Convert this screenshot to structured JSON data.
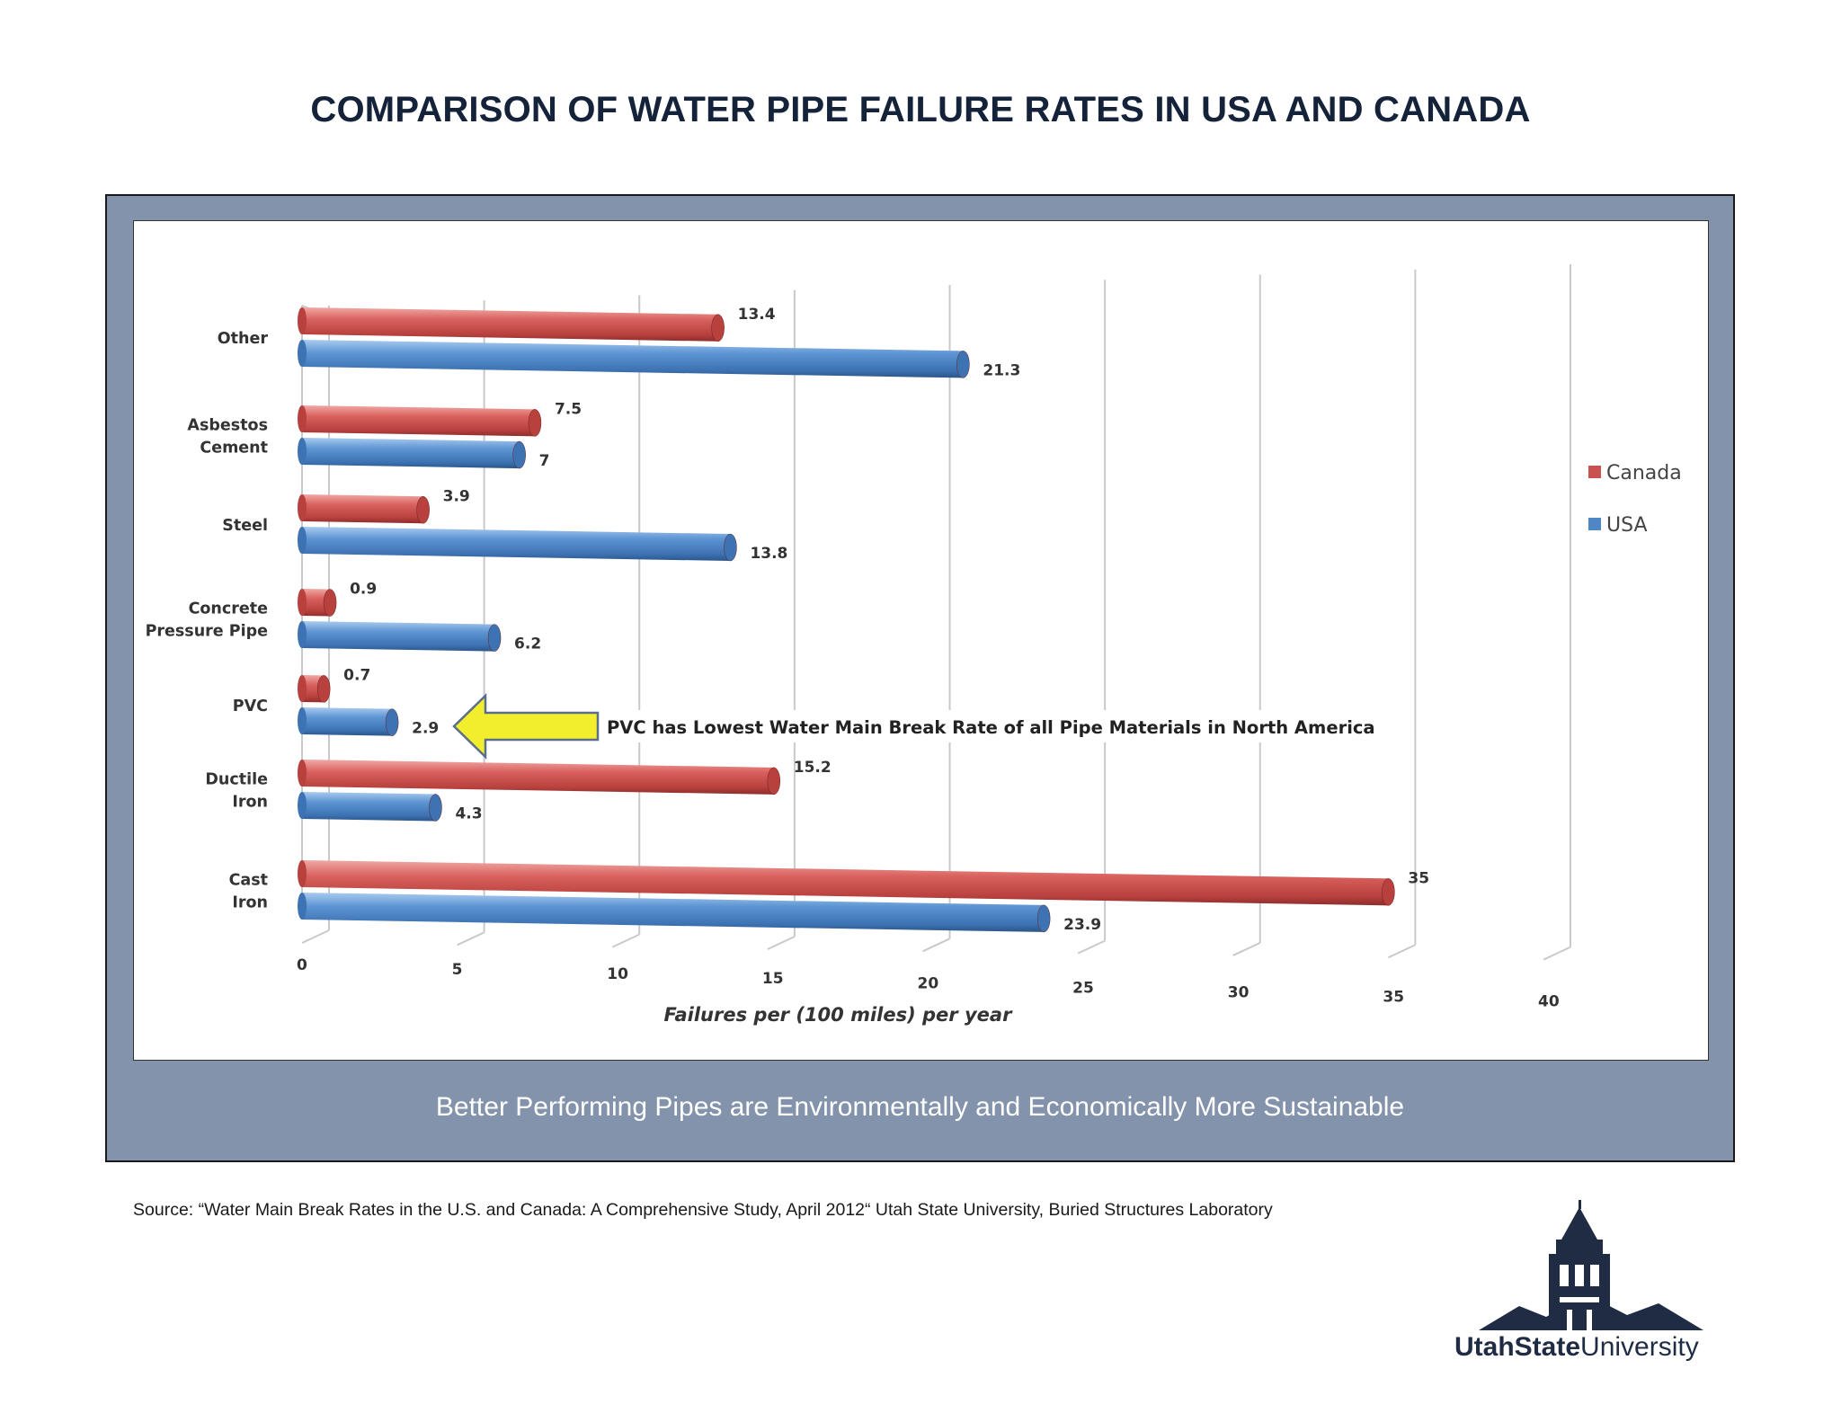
{
  "page_title": "COMPARISON OF WATER PIPE FAILURE RATES IN USA AND CANADA",
  "tagline": "Better Performing Pipes are Environmentally and Economically More Sustainable",
  "source": "Source: “Water Main Break Rates in the U.S. and Canada: A Comprehensive Study, April 2012“ Utah State University, Buried Structures Laboratory",
  "logo": {
    "bold": "UtahState",
    "regular": "University"
  },
  "colors": {
    "canada": "#c9514f",
    "usa": "#4f86c6",
    "frame": "#8393ac",
    "arrow": "#f2ee2e"
  },
  "chart_data": {
    "type": "bar",
    "orientation": "horizontal",
    "categories": [
      [
        "Other"
      ],
      [
        "Asbestos",
        "Cement"
      ],
      [
        "Steel"
      ],
      [
        "Concrete",
        "Pressure Pipe"
      ],
      [
        "PVC"
      ],
      [
        "Ductile",
        "Iron"
      ],
      [
        "Cast",
        "Iron"
      ]
    ],
    "series": [
      {
        "name": "Canada",
        "color": "#c9514f",
        "values": [
          13.4,
          7.5,
          3.9,
          0.9,
          0.7,
          15.2,
          35
        ]
      },
      {
        "name": "USA",
        "color": "#4f86c6",
        "values": [
          21.3,
          7,
          13.8,
          6.2,
          2.9,
          4.3,
          23.9
        ]
      }
    ],
    "value_labels": {
      "Canada": [
        "13.4",
        "7.5",
        "3.9",
        "0.9",
        "0.7",
        "15.2",
        "35"
      ],
      "USA": [
        "21.3",
        "7",
        "13.8",
        "6.2",
        "2.9",
        "4.3",
        "23.9"
      ]
    },
    "xlabel": "Failures per (100 miles) per year",
    "xlim": [
      0,
      40
    ],
    "xticks": [
      0,
      5,
      10,
      15,
      20,
      25,
      30,
      35,
      40
    ],
    "legend_position": "right",
    "annotation": "PVC has Lowest Water Main Break Rate of all Pipe Materials in North America",
    "grid": true
  }
}
